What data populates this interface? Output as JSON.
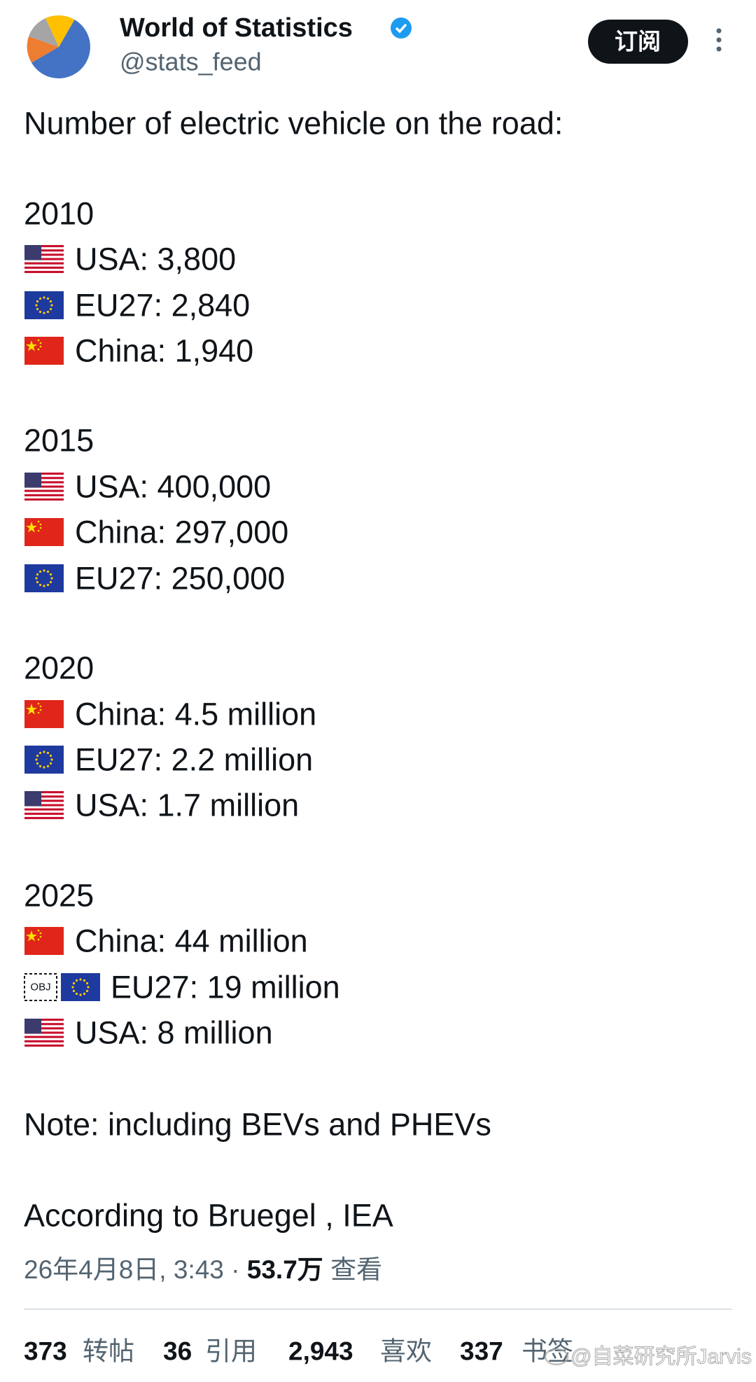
{
  "author": {
    "name": "World of Statistics",
    "handle": "@stats_feed"
  },
  "subscribe_button": "订阅",
  "post": {
    "intro": "Number of electric vehicle on the road:",
    "sections": [
      {
        "year": "2010",
        "lines": [
          "USA: 3,800",
          "EU27: 2,840",
          "China: 1,940"
        ]
      },
      {
        "year": "2015",
        "lines": [
          "USA: 400,000",
          "China: 297,000",
          "EU27: 250,000"
        ]
      },
      {
        "year": "2020",
        "lines": [
          "China: 4.5 million",
          "EU27: 2.2 million",
          "USA: 1.7 million"
        ]
      },
      {
        "year": "2025",
        "lines": [
          "China: 44 million",
          "EU27: 19 million",
          "USA: 8 million"
        ]
      }
    ],
    "obj_placeholder": "OBJ",
    "note": "Note: including BEVs and PHEVs",
    "source": "According to Bruegel , IEA"
  },
  "meta": {
    "timestamp": "26年4月8日, 3:43",
    "separator": "·",
    "views": "53.7万",
    "views_label": "查看"
  },
  "stats": [
    {
      "count": "373",
      "label": "转帖"
    },
    {
      "count": "36",
      "label": "引用"
    },
    {
      "count": "2,943",
      "label": "喜欢"
    },
    {
      "count": "337",
      "label": "书签"
    }
  ],
  "watermark": "@自菜研究所Jarvis"
}
